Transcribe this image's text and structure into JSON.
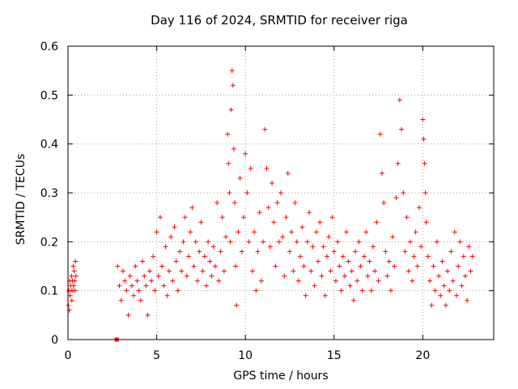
{
  "chart_data": {
    "type": "scatter",
    "title": "Day 116 of 2024, SRMTID for receiver riga",
    "xlabel": "GPS time / hours",
    "ylabel": "SRMTID / TECUs",
    "xlim": [
      0,
      24
    ],
    "ylim": [
      0,
      0.6
    ],
    "xticks": [
      0,
      5,
      10,
      15,
      20
    ],
    "yticks": [
      0,
      0.1,
      0.2,
      0.3,
      0.4,
      0.5,
      0.6
    ],
    "xtick_labels": [
      "0",
      "5",
      "10",
      "15",
      "20"
    ],
    "ytick_labels": [
      "0",
      "0.1",
      "0.2",
      "0.3",
      "0.4",
      "0.5",
      "0.6"
    ],
    "grid": true,
    "marker": "plus",
    "color": "#ff0000",
    "series": [
      {
        "name": "SRMTID",
        "x": [
          0.02,
          0.05,
          0.08,
          0.1,
          0.12,
          0.15,
          0.18,
          0.2,
          0.22,
          0.25,
          0.28,
          0.3,
          0.32,
          0.35,
          0.38,
          0.4,
          0.42,
          0.45,
          2.8,
          2.9,
          3.0,
          3.1,
          3.2,
          3.3,
          3.4,
          3.5,
          3.6,
          3.7,
          3.8,
          3.9,
          4.0,
          4.1,
          4.2,
          4.3,
          4.4,
          4.5,
          4.6,
          4.7,
          4.8,
          4.9,
          5.0,
          5.1,
          5.2,
          5.3,
          5.4,
          5.5,
          5.6,
          5.7,
          5.8,
          5.9,
          6.0,
          6.1,
          6.2,
          6.3,
          6.4,
          6.5,
          6.6,
          6.7,
          6.8,
          6.9,
          7.0,
          7.1,
          7.2,
          7.3,
          7.4,
          7.5,
          7.6,
          7.7,
          7.8,
          7.9,
          8.0,
          8.1,
          8.2,
          8.3,
          8.4,
          8.5,
          8.6,
          8.7,
          8.8,
          8.9,
          9.0,
          9.05,
          9.1,
          9.15,
          9.2,
          9.25,
          9.3,
          9.35,
          9.4,
          9.45,
          9.5,
          9.6,
          9.7,
          9.8,
          9.9,
          10.0,
          10.1,
          10.2,
          10.3,
          10.4,
          10.5,
          10.6,
          10.7,
          10.8,
          10.9,
          11.0,
          11.1,
          11.2,
          11.3,
          11.4,
          11.5,
          11.6,
          11.7,
          11.8,
          11.9,
          12.0,
          12.1,
          12.2,
          12.3,
          12.4,
          12.5,
          12.6,
          12.7,
          12.8,
          12.9,
          13.0,
          13.1,
          13.2,
          13.3,
          13.4,
          13.5,
          13.6,
          13.7,
          13.8,
          13.9,
          14.0,
          14.1,
          14.2,
          14.3,
          14.4,
          14.5,
          14.6,
          14.7,
          14.8,
          14.9,
          15.0,
          15.1,
          15.2,
          15.3,
          15.4,
          15.5,
          15.6,
          15.7,
          15.8,
          15.9,
          16.0,
          16.1,
          16.2,
          16.3,
          16.4,
          16.5,
          16.6,
          16.7,
          16.8,
          16.9,
          17.0,
          17.1,
          17.2,
          17.3,
          17.4,
          17.5,
          17.6,
          17.7,
          17.8,
          17.9,
          18.0,
          18.1,
          18.2,
          18.3,
          18.4,
          18.5,
          18.6,
          18.7,
          18.8,
          18.9,
          19.0,
          19.1,
          19.2,
          19.3,
          19.4,
          19.5,
          19.6,
          19.7,
          19.8,
          19.9,
          20.0,
          20.05,
          20.1,
          20.15,
          20.2,
          20.3,
          20.4,
          20.5,
          20.6,
          20.7,
          20.8,
          20.9,
          21.0,
          21.1,
          21.2,
          21.3,
          21.4,
          21.5,
          21.6,
          21.7,
          21.8,
          21.9,
          22.0,
          22.1,
          22.2,
          22.3,
          22.4,
          22.5,
          22.6,
          22.7,
          22.8
        ],
        "y": [
          0.07,
          0.1,
          0.06,
          0.12,
          0.09,
          0.11,
          0.1,
          0.13,
          0.08,
          0.12,
          0.1,
          0.15,
          0.11,
          0.14,
          0.12,
          0.1,
          0.16,
          0.13,
          0.15,
          0.11,
          0.08,
          0.14,
          0.12,
          0.1,
          0.05,
          0.13,
          0.11,
          0.09,
          0.15,
          0.12,
          0.1,
          0.08,
          0.16,
          0.13,
          0.11,
          0.05,
          0.14,
          0.12,
          0.17,
          0.1,
          0.22,
          0.13,
          0.25,
          0.15,
          0.11,
          0.19,
          0.09,
          0.14,
          0.21,
          0.12,
          0.23,
          0.16,
          0.1,
          0.18,
          0.14,
          0.2,
          0.25,
          0.13,
          0.17,
          0.22,
          0.27,
          0.15,
          0.2,
          0.12,
          0.18,
          0.24,
          0.14,
          0.17,
          0.11,
          0.2,
          0.16,
          0.13,
          0.19,
          0.15,
          0.28,
          0.12,
          0.18,
          0.25,
          0.14,
          0.21,
          0.42,
          0.36,
          0.3,
          0.2,
          0.47,
          0.55,
          0.52,
          0.39,
          0.28,
          0.15,
          0.07,
          0.22,
          0.33,
          0.18,
          0.25,
          0.38,
          0.3,
          0.2,
          0.35,
          0.14,
          0.22,
          0.1,
          0.18,
          0.26,
          0.12,
          0.2,
          0.43,
          0.35,
          0.27,
          0.19,
          0.32,
          0.24,
          0.15,
          0.28,
          0.2,
          0.3,
          0.21,
          0.13,
          0.25,
          0.34,
          0.18,
          0.22,
          0.14,
          0.28,
          0.2,
          0.12,
          0.17,
          0.23,
          0.15,
          0.09,
          0.2,
          0.26,
          0.14,
          0.19,
          0.11,
          0.22,
          0.16,
          0.24,
          0.13,
          0.19,
          0.09,
          0.17,
          0.21,
          0.14,
          0.25,
          0.18,
          0.12,
          0.2,
          0.15,
          0.1,
          0.17,
          0.13,
          0.22,
          0.16,
          0.11,
          0.14,
          0.08,
          0.18,
          0.12,
          0.2,
          0.15,
          0.1,
          0.17,
          0.22,
          0.13,
          0.16,
          0.1,
          0.19,
          0.14,
          0.24,
          0.12,
          0.42,
          0.34,
          0.28,
          0.18,
          0.13,
          0.16,
          0.1,
          0.21,
          0.15,
          0.29,
          0.36,
          0.49,
          0.43,
          0.3,
          0.18,
          0.25,
          0.14,
          0.2,
          0.12,
          0.17,
          0.22,
          0.15,
          0.27,
          0.19,
          0.45,
          0.41,
          0.36,
          0.3,
          0.24,
          0.17,
          0.12,
          0.07,
          0.15,
          0.1,
          0.2,
          0.13,
          0.09,
          0.16,
          0.11,
          0.07,
          0.14,
          0.1,
          0.18,
          0.12,
          0.22,
          0.09,
          0.15,
          0.2,
          0.11,
          0.17,
          0.13,
          0.08,
          0.19,
          0.14,
          0.17
        ]
      }
    ],
    "outlier_points": [
      {
        "x": 2.75,
        "y": 0.0
      }
    ]
  }
}
